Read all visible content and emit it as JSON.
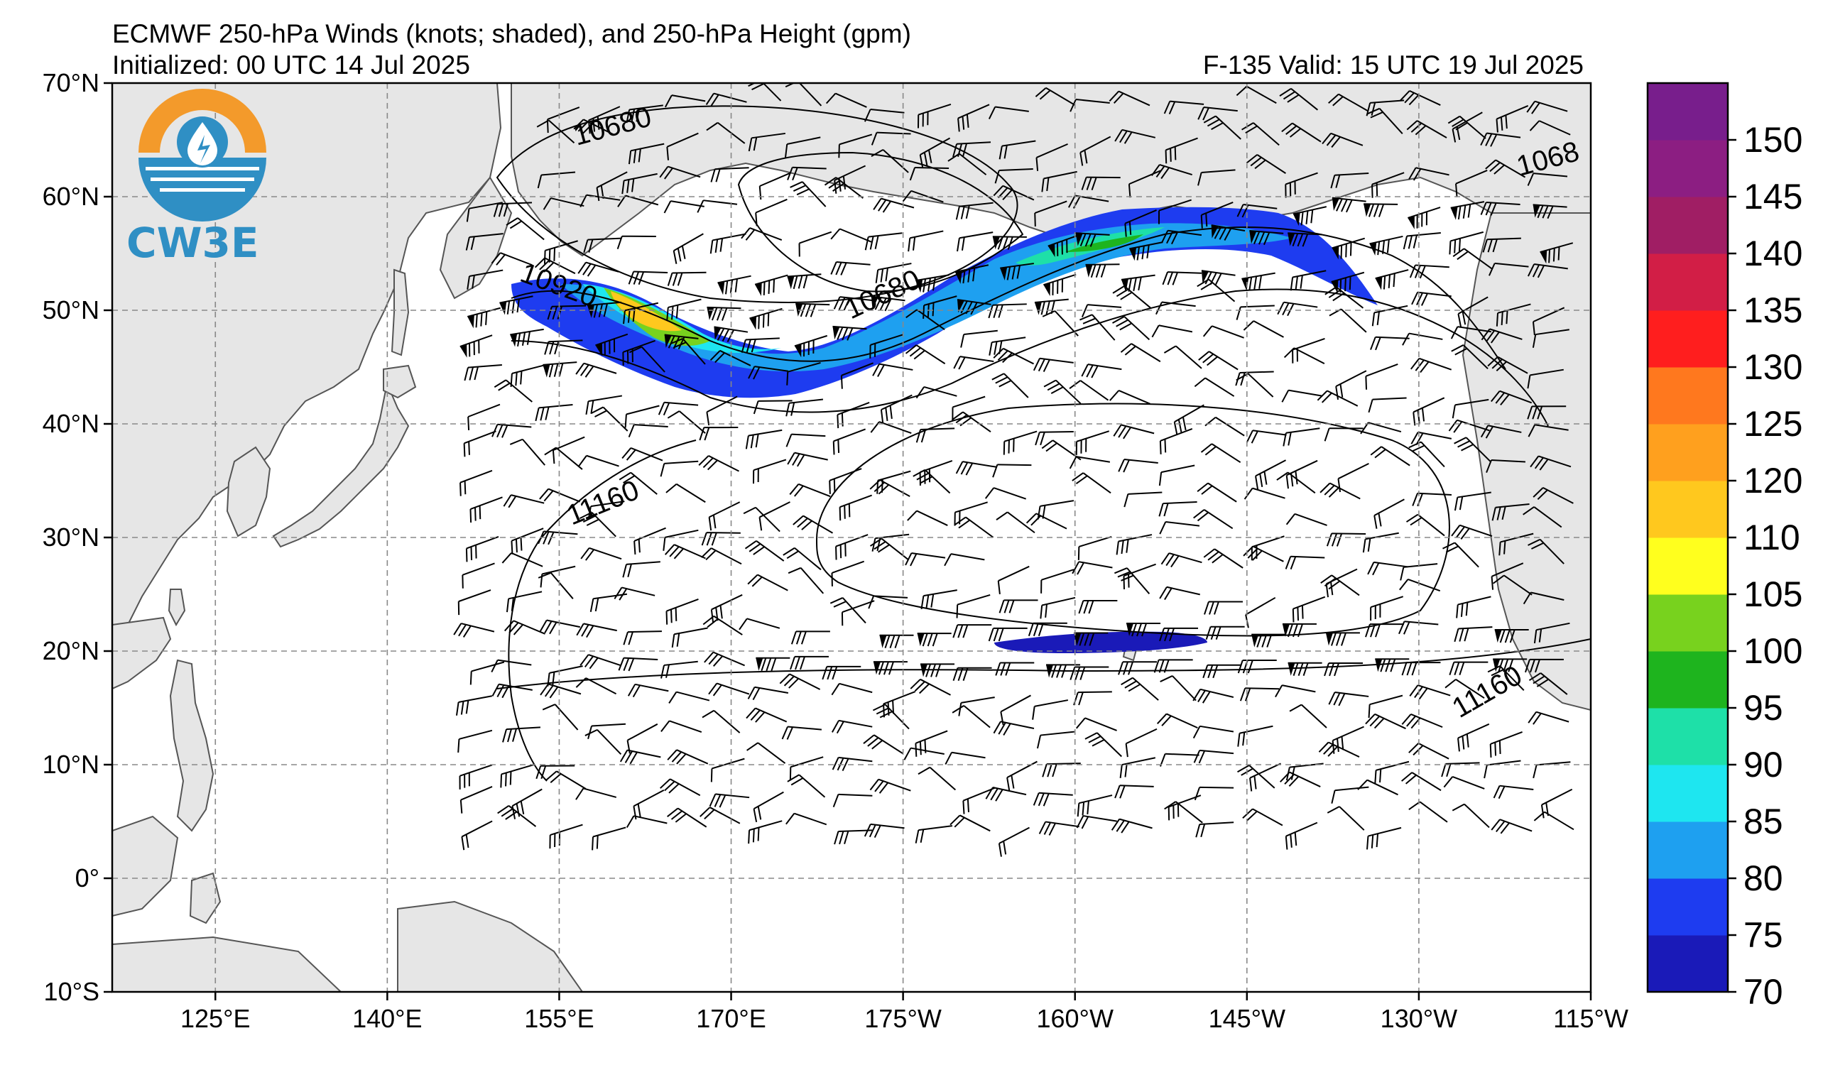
{
  "header": {
    "title": "ECMWF 250-hPa Winds (knots; shaded), and 250-hPa Height (gpm)",
    "initialized": "Initialized: 00 UTC 14 Jul 2025",
    "valid": "F-135  Valid: 15 UTC 19 Jul 2025"
  },
  "logo": {
    "text": "CW3E"
  },
  "map": {
    "latitude_labels": [
      "70°N",
      "60°N",
      "50°N",
      "40°N",
      "30°N",
      "20°N",
      "10°N",
      "0°",
      "10°S"
    ],
    "longitude_labels": [
      "125°E",
      "140°E",
      "155°E",
      "170°E",
      "175°W",
      "160°W",
      "145°W",
      "130°W",
      "115°W"
    ],
    "height_contour_labels": [
      "10680",
      "10680",
      "10920",
      "11160",
      "11160",
      "1068"
    ],
    "land_color": "#e6e6e6",
    "coast_color": "#555555",
    "grid_color": "#888888"
  },
  "colorbar": {
    "levels": [
      "70",
      "75",
      "80",
      "85",
      "90",
      "95",
      "100",
      "105",
      "110",
      "120",
      "125",
      "130",
      "135",
      "140",
      "145",
      "150"
    ],
    "colors": [
      "#1a1ab8",
      "#1e3cf0",
      "#1ea0f0",
      "#1ee6f0",
      "#1ee0a8",
      "#1eb41e",
      "#78d21e",
      "#ffff1e",
      "#ffc81e",
      "#ffa01e",
      "#ff781e",
      "#ff1e1e",
      "#d21e46",
      "#a01e64",
      "#8c1e82",
      "#781e8c"
    ]
  }
}
